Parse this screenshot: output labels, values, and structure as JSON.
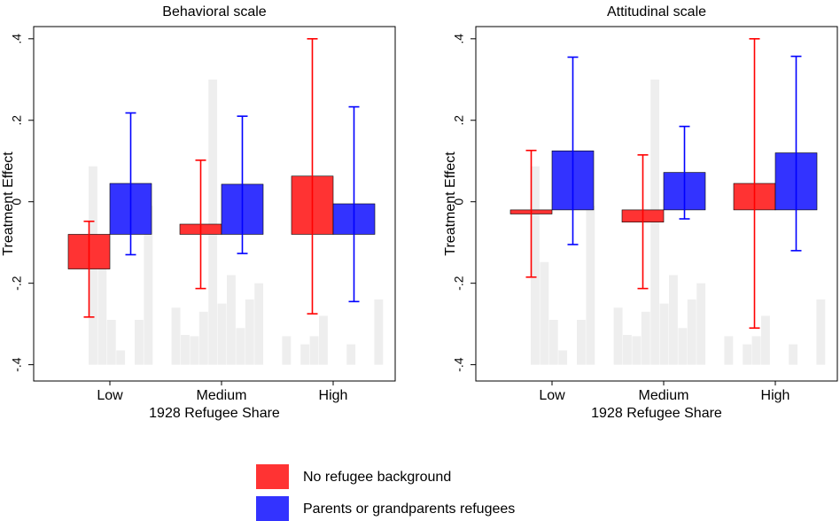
{
  "chart_data": [
    {
      "type": "bar",
      "title": "Behavioral scale",
      "xlabel": "1928 Refugee Share",
      "ylabel": "Treatment Effect",
      "categories": [
        "Low",
        "Medium",
        "High"
      ],
      "bar_base": -0.08,
      "series": [
        {
          "name": "No refugee background",
          "color": "#ff3333",
          "errcolor": "#ff0000",
          "values": [
            -0.165,
            -0.055,
            0.063
          ],
          "ci_low": [
            -0.283,
            -0.213,
            -0.275
          ],
          "ci_high": [
            -0.048,
            0.102,
            0.4
          ]
        },
        {
          "name": "Parents or grandparents refugees",
          "color": "#3333ff",
          "errcolor": "#0000ff",
          "values": [
            0.045,
            0.043,
            -0.005
          ],
          "ci_low": [
            -0.13,
            -0.127,
            -0.245
          ],
          "ci_high": [
            0.218,
            0.21,
            0.233
          ]
        }
      ],
      "histogram": {
        "color": "#eeeeee",
        "base": -0.4,
        "values": [
          0.087,
          -0.148,
          -0.29,
          -0.365,
          null,
          -0.29,
          -0.01,
          null,
          null,
          -0.26,
          -0.327,
          -0.33,
          -0.27,
          0.3,
          -0.25,
          -0.18,
          -0.31,
          -0.24,
          -0.2,
          null,
          null,
          -0.33,
          null,
          -0.35,
          -0.33,
          -0.28,
          null,
          null,
          -0.35,
          null,
          null,
          -0.24
        ]
      },
      "ylim": [
        -0.44,
        0.43
      ],
      "yticks": [
        {
          "value": -0.4,
          "label": "-.4"
        },
        {
          "value": -0.2,
          "label": "-.2"
        },
        0,
        {
          "value": 0.2,
          "label": ".2"
        },
        {
          "value": 0.4,
          "label": ".4"
        }
      ]
    },
    {
      "type": "bar",
      "title": "Attitudinal scale",
      "xlabel": "1928 Refugee Share",
      "ylabel": "Treatment Effect",
      "categories": [
        "Low",
        "Medium",
        "High"
      ],
      "bar_base": -0.02,
      "series": [
        {
          "color": "#ff3333",
          "errcolor": "#ff0000",
          "values": [
            -0.03,
            -0.05,
            0.045
          ],
          "ci_low": [
            -0.185,
            -0.213,
            -0.31
          ],
          "ci_high": [
            0.126,
            0.115,
            0.4
          ]
        },
        {
          "color": "#3333ff",
          "errcolor": "#0000ff",
          "values": [
            0.125,
            0.072,
            0.12
          ],
          "ci_low": [
            -0.105,
            -0.042,
            -0.12
          ],
          "ci_high": [
            0.355,
            0.185,
            0.357
          ]
        }
      ],
      "histogram": {
        "color": "#eeeeee",
        "base": -0.4,
        "values": [
          0.087,
          -0.148,
          -0.29,
          -0.365,
          null,
          -0.29,
          -0.01,
          null,
          null,
          -0.26,
          -0.327,
          -0.33,
          -0.27,
          0.3,
          -0.25,
          -0.18,
          -0.31,
          -0.24,
          -0.2,
          null,
          null,
          -0.33,
          null,
          -0.35,
          -0.33,
          -0.28,
          null,
          null,
          -0.35,
          null,
          null,
          -0.24
        ]
      },
      "ylim": [
        -0.44,
        0.43
      ],
      "yticks": [
        {
          "value": -0.4,
          "label": "-.4"
        },
        {
          "value": -0.2,
          "label": "-.2"
        },
        0,
        {
          "value": 0.2,
          "label": ".2"
        },
        {
          "value": 0.4,
          "label": ".4"
        }
      ]
    }
  ]
}
